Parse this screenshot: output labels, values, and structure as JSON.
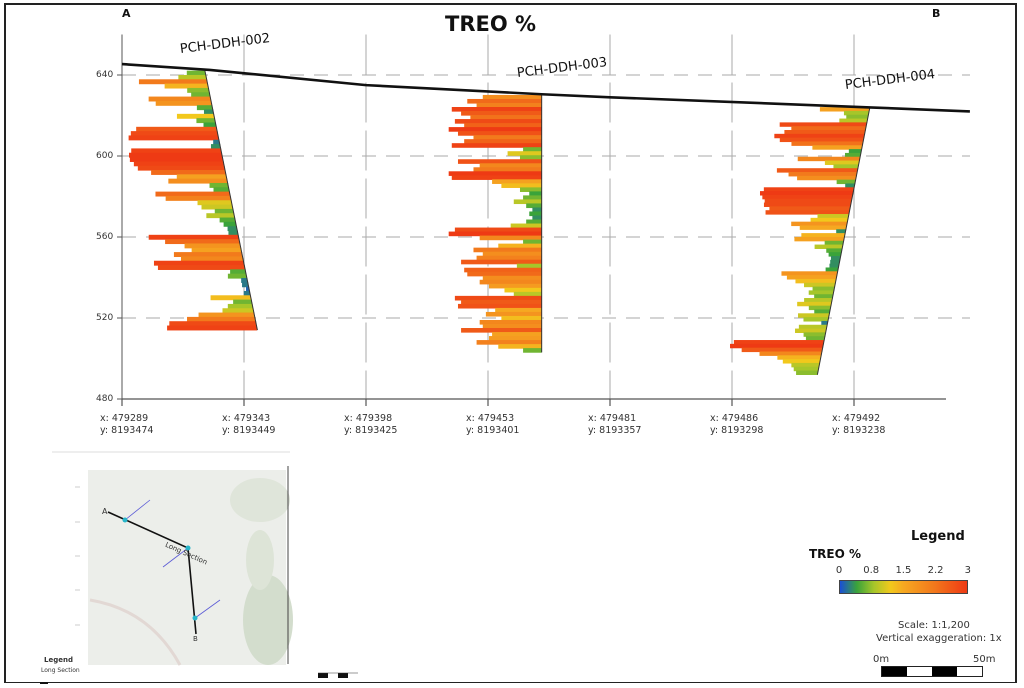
{
  "chart_data": {
    "type": "bar",
    "title": "TREO %",
    "section_start_label": "A",
    "section_end_label": "B",
    "ylim": [
      480,
      660
    ],
    "y_ticks": [
      480,
      520,
      560,
      600,
      640
    ],
    "grid": true,
    "x_stations": [
      {
        "x": "x: 479289",
        "y": "y: 8193474"
      },
      {
        "x": "x: 479343",
        "y": "y: 8193449"
      },
      {
        "x": "x: 479398",
        "y": "y: 8193425"
      },
      {
        "x": "x: 479453",
        "y": "y: 8193401"
      },
      {
        "x": "x: 479481",
        "y": "y: 8193357"
      },
      {
        "x": "x: 479486",
        "y": "y: 8193298"
      },
      {
        "x": "x: 479492",
        "y": "y: 8193238"
      }
    ],
    "ground_profile": [
      [
        0,
        645.4
      ],
      [
        0.72,
        642.5
      ],
      [
        2,
        635
      ],
      [
        3.44,
        630.5
      ],
      [
        4,
        629
      ],
      [
        6.13,
        624
      ],
      [
        6.95,
        622
      ]
    ],
    "holes": [
      {
        "name": "PCH-DDH-002",
        "collar": [
          0.68,
          642
        ],
        "end": [
          1.11,
          514
        ],
        "treo_pct": [
          0.6,
          0.9,
          2.2,
          1.4,
          0.7,
          0.6,
          2.0,
          1.8,
          0.5,
          0.3,
          1.2,
          0.6,
          0.4,
          2.6,
          2.8,
          2.9,
          0.2,
          0.3,
          2.9,
          3.0,
          3.0,
          2.9,
          2.8,
          2.4,
          1.6,
          1.9,
          0.6,
          0.5,
          2.4,
          2.1,
          1.1,
          1.0,
          0.6,
          0.9,
          0.5,
          0.4,
          0.3,
          0.3,
          2.9,
          2.4,
          1.8,
          1.6,
          2.2,
          2.0,
          2.9,
          2.8,
          0.5,
          0.6,
          0.2,
          0.2,
          0.1,
          0.2,
          1.3,
          0.6,
          0.8,
          1.0,
          1.8,
          2.2,
          2.8,
          2.9
        ]
      },
      {
        "name": "PCH-DDH-003",
        "collar": [
          3.44,
          630
        ],
        "end": [
          3.44,
          503
        ],
        "treo_pct": [
          1.9,
          2.4,
          2.1,
          2.9,
          2.6,
          2.3,
          2.8,
          2.5,
          3.0,
          2.7,
          2.2,
          2.5,
          2.9,
          0.6,
          1.1,
          0.7,
          2.7,
          2.0,
          2.2,
          3.0,
          2.9,
          1.6,
          1.3,
          0.7,
          0.4,
          0.6,
          0.9,
          0.5,
          0.3,
          0.4,
          0.3,
          0.5,
          1.0,
          2.8,
          3.0,
          2.0,
          0.6,
          1.4,
          2.2,
          1.9,
          2.1,
          2.6,
          0.8,
          2.5,
          2.4,
          1.9,
          2.0,
          1.7,
          1.2,
          0.9,
          2.8,
          2.6,
          2.7,
          1.5,
          1.8,
          1.3,
          2.0,
          1.9,
          2.6,
          1.6,
          1.7,
          2.1,
          1.4,
          0.6
        ]
      },
      {
        "name": "PCH-DDH-004",
        "collar": [
          6.13,
          624
        ],
        "end": [
          5.7,
          492
        ],
        "treo_pct": [
          1.6,
          0.8,
          0.7,
          0.9,
          2.8,
          2.4,
          2.6,
          2.9,
          2.7,
          2.3,
          1.6,
          0.4,
          0.5,
          2.0,
          1.1,
          0.8,
          2.6,
          2.2,
          1.9,
          0.6,
          0.3,
          2.9,
          3.0,
          2.9,
          2.8,
          2.8,
          2.6,
          2.7,
          1.0,
          1.2,
          1.8,
          1.5,
          0.3,
          1.4,
          1.6,
          0.6,
          0.9,
          0.5,
          0.4,
          0.3,
          0.3,
          0.3,
          0.4,
          1.8,
          1.6,
          1.3,
          1.0,
          0.7,
          0.8,
          0.6,
          0.9,
          1.1,
          0.7,
          0.5,
          1.0,
          0.8,
          0.2,
          0.9,
          1.0,
          0.7,
          0.6,
          2.9,
          3.0,
          2.6,
          2.0,
          1.4,
          1.2,
          0.9,
          0.8,
          0.7
        ]
      }
    ],
    "color_scale": {
      "stops": [
        [
          0,
          "#1a4fd6"
        ],
        [
          0.4,
          "#3aa33a"
        ],
        [
          0.8,
          "#a6c62a"
        ],
        [
          1.2,
          "#f2c81c"
        ],
        [
          1.5,
          "#f6a821"
        ],
        [
          2.2,
          "#f27a1c"
        ],
        [
          3,
          "#ee3a14"
        ]
      ]
    }
  },
  "legend": {
    "title": "Legend",
    "variable": "TREO %",
    "ticks": [
      "0",
      "0.8",
      "1.5",
      "2.2",
      "3"
    ],
    "scale": "Scale: 1:1,200",
    "vertical_exaggeration": "Vertical exaggeration: 1x",
    "scalebar_start": "0m",
    "scalebar_end": "50m"
  },
  "inset_map": {
    "point_a": "A",
    "point_b": "B",
    "line_label": "Long Section",
    "legend_title": "Legend",
    "legend_item": "Long Section"
  }
}
